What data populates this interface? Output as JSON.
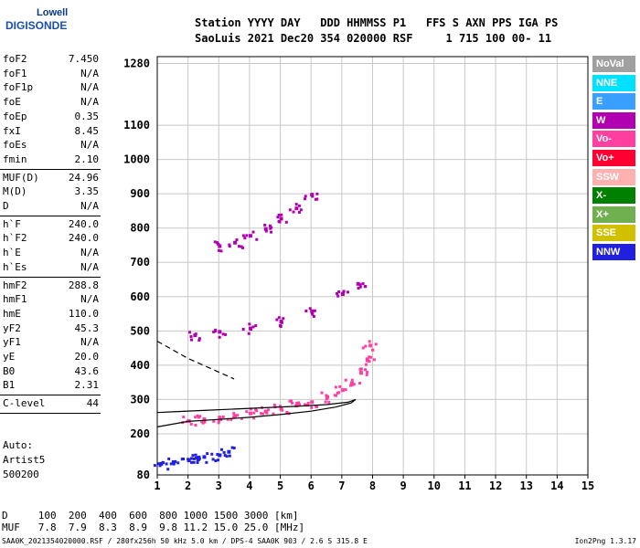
{
  "logo": {
    "top": "Lowell",
    "main": "DIGISONDE"
  },
  "header": {
    "line1": "Station YYYY DAY   DDD HHMMSS P1   FFS S AXN PPS IGA PS",
    "line2": "SaoLuis 2021 Dec20 354 020000 RSF     1 715 100 00- 11"
  },
  "params": [
    {
      "label": "foF2",
      "value": "7.450"
    },
    {
      "label": "foF1",
      "value": "N/A"
    },
    {
      "label": "foF1p",
      "value": "N/A"
    },
    {
      "label": "foE",
      "value": "N/A"
    },
    {
      "label": "foEp",
      "value": "0.35"
    },
    {
      "label": "fxI",
      "value": "8.45"
    },
    {
      "label": "foEs",
      "value": "N/A"
    },
    {
      "label": "fmin",
      "value": "2.10"
    },
    {
      "label": "MUF(D)",
      "value": "24.96"
    },
    {
      "label": "M(D)",
      "value": "3.35"
    },
    {
      "label": "D",
      "value": "N/A"
    },
    {
      "label": "h`F",
      "value": "240.0"
    },
    {
      "label": "h`F2",
      "value": "240.0"
    },
    {
      "label": "h`E",
      "value": "N/A"
    },
    {
      "label": "h`Es",
      "value": "N/A"
    },
    {
      "label": "hmF2",
      "value": "288.8"
    },
    {
      "label": "hmF1",
      "value": "N/A"
    },
    {
      "label": "hmE",
      "value": "110.0"
    },
    {
      "label": "yF2",
      "value": "45.3"
    },
    {
      "label": "yF1",
      "value": "N/A"
    },
    {
      "label": "yE",
      "value": "20.0"
    },
    {
      "label": "B0",
      "value": "43.6"
    },
    {
      "label": "B1",
      "value": "2.31"
    },
    {
      "label": "C-level",
      "value": "44"
    }
  ],
  "auto": {
    "line1": "Auto:",
    "line2": "Artist5",
    "line3": "500200"
  },
  "legend": [
    {
      "label": "NoVal",
      "color": "#a0a0a0"
    },
    {
      "label": "NNE",
      "color": "#00e0ff"
    },
    {
      "label": "E",
      "color": "#3aa0ff"
    },
    {
      "label": "W",
      "color": "#b000b0"
    },
    {
      "label": "Vo-",
      "color": "#ff40a0"
    },
    {
      "label": "Vo+",
      "color": "#ff0030"
    },
    {
      "label": "SSW",
      "color": "#ffb0b0"
    },
    {
      "label": "X-",
      "color": "#008000"
    },
    {
      "label": "X+",
      "color": "#70b050"
    },
    {
      "label": "SSE",
      "color": "#d0c000"
    },
    {
      "label": "NNW",
      "color": "#2020e0"
    }
  ],
  "footer": {
    "line1": "D     100  200  400  600  800 1000 1500 3000 [km]",
    "line2": "MUF   7.8  7.9  8.3  8.9  9.8 11.2 15.0 25.0 [MHz]",
    "line3": "SAA0K_2021354020000.RSF / 280fx256h 50 kHz 5.0 km / DPS-4 SAA0K 903 / 2.6 S 315.8 E",
    "version": "Ion2Png 1.3.17"
  },
  "chart_data": {
    "type": "scatter",
    "xlim": [
      1,
      15
    ],
    "ylim": [
      80,
      1300
    ],
    "x_ticks": [
      1,
      2,
      3,
      4,
      5,
      6,
      7,
      8,
      9,
      10,
      11,
      12,
      13,
      14,
      15
    ],
    "y_ticks": [
      80,
      200,
      300,
      400,
      500,
      600,
      700,
      800,
      900,
      1000,
      1100,
      1280
    ],
    "grid": true,
    "legend_position": "right",
    "traces": [
      {
        "name": "F2-trace-o",
        "color": "#ff40a0",
        "x": [
          2.0,
          2.5,
          3.0,
          3.5,
          4.0,
          4.5,
          5.0,
          5.5,
          6.0,
          6.5,
          7.0,
          7.3,
          7.6,
          7.8,
          7.9
        ],
        "y": [
          240,
          245,
          250,
          255,
          262,
          268,
          275,
          285,
          295,
          310,
          330,
          350,
          380,
          420,
          460
        ]
      },
      {
        "name": "F2-second-hop",
        "color": "#b000b0",
        "x": [
          2.2,
          3.0,
          4.0,
          5.0,
          6.0,
          7.0,
          7.5
        ],
        "y": [
          490,
          500,
          510,
          530,
          560,
          610,
          640
        ]
      },
      {
        "name": "F2-third-hop",
        "color": "#b000b0",
        "x": [
          3.0,
          3.5,
          4.0,
          4.5,
          5.0,
          5.5,
          6.0
        ],
        "y": [
          750,
          760,
          780,
          800,
          830,
          860,
          900
        ]
      },
      {
        "name": "Es-low",
        "color": "#2020e0",
        "x": [
          1.1,
          1.5,
          2.0,
          2.3,
          2.5,
          3.0,
          3.3
        ],
        "y": [
          115,
          120,
          125,
          128,
          135,
          140,
          150
        ]
      }
    ],
    "profile_curve": {
      "x": [
        1.0,
        2.0,
        3.0,
        4.0,
        5.0,
        6.0,
        6.8,
        7.3,
        7.45,
        7.2,
        6.5,
        5.5,
        4.5,
        3.5,
        2.5,
        1.5,
        1.0
      ],
      "y": [
        220,
        236,
        242,
        248,
        256,
        266,
        278,
        290,
        300,
        292,
        285,
        280,
        276,
        272,
        268,
        264,
        262
      ]
    },
    "dashed_curve": {
      "x": [
        1.0,
        1.5,
        2.0,
        2.5,
        3.0,
        3.5
      ],
      "y": [
        470,
        445,
        420,
        400,
        380,
        360
      ]
    }
  }
}
